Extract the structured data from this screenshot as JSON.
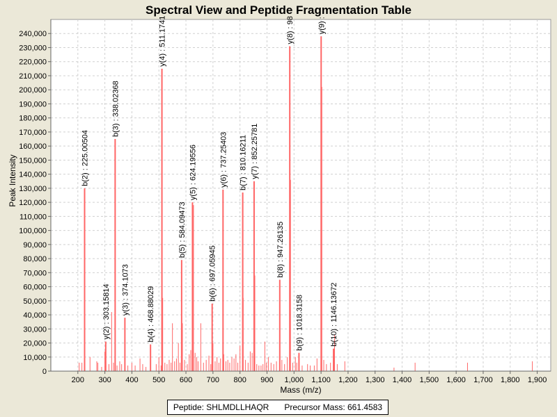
{
  "chart_data": {
    "type": "bar",
    "title": "Spectral View and Peptide Fragmentation Table",
    "xlabel": "Mass (m/z)",
    "ylabel": "Peak Intensity",
    "xlim": [
      100,
      1950
    ],
    "ylim": [
      0,
      250000
    ],
    "grid": true,
    "x_ticks": [
      200,
      300,
      400,
      500,
      600,
      700,
      800,
      900,
      1000,
      1100,
      1200,
      1300,
      1400,
      1500,
      1600,
      1700,
      1800,
      1900
    ],
    "x_tick_labels": [
      "200",
      "300",
      "400",
      "500",
      "600",
      "700",
      "800",
      "900",
      "1,000",
      "1,100",
      "1,200",
      "1,300",
      "1,400",
      "1,500",
      "1,600",
      "1,700",
      "1,800",
      "1,900"
    ],
    "y_ticks": [
      0,
      10000,
      20000,
      30000,
      40000,
      50000,
      60000,
      70000,
      80000,
      90000,
      100000,
      110000,
      120000,
      130000,
      140000,
      150000,
      160000,
      170000,
      180000,
      190000,
      200000,
      210000,
      220000,
      230000,
      240000
    ],
    "y_tick_labels": [
      "0",
      "10,000",
      "20,000",
      "30,000",
      "40,000",
      "50,000",
      "60,000",
      "70,000",
      "80,000",
      "90,000",
      "100,000",
      "110,000",
      "120,000",
      "130,000",
      "140,000",
      "150,000",
      "160,000",
      "170,000",
      "180,000",
      "190,000",
      "200,000",
      "210,000",
      "220,000",
      "230,000",
      "240,000"
    ],
    "annotated_peaks": [
      {
        "mz": 225.00504,
        "intensity": 130000,
        "label": "b(2) : 225.00504"
      },
      {
        "mz": 303.15814,
        "intensity": 21000,
        "label": "y(2) : 303.15814"
      },
      {
        "mz": 338.02368,
        "intensity": 165000,
        "label": "b(3) : 338.02368"
      },
      {
        "mz": 374.1073,
        "intensity": 38000,
        "label": "y(3) : 374.1073"
      },
      {
        "mz": 468.88029,
        "intensity": 19000,
        "label": "b(4) : 468.88029"
      },
      {
        "mz": 511.1741,
        "intensity": 215000,
        "label": "y(4) : 511.1741"
      },
      {
        "mz": 584.09473,
        "intensity": 79000,
        "label": "b(5) : 584.09473"
      },
      {
        "mz": 624.19556,
        "intensity": 120000,
        "label": "y(5) : 624.19556"
      },
      {
        "mz": 697.05945,
        "intensity": 48000,
        "label": "b(6) : 697.05945"
      },
      {
        "mz": 737.25403,
        "intensity": 129000,
        "label": "y(6) : 737.25403"
      },
      {
        "mz": 810.16211,
        "intensity": 127000,
        "label": "b(7) : 810.16211"
      },
      {
        "mz": 852.25781,
        "intensity": 135000,
        "label": "y(7) : 852.25781"
      },
      {
        "mz": 947.26135,
        "intensity": 65000,
        "label": "b(8) : 947.26135"
      },
      {
        "mz": 984.3,
        "intensity": 231000,
        "label": "y(8) : 98"
      },
      {
        "mz": 1018.3158,
        "intensity": 13000,
        "label": "b(9) : 1018.3158"
      },
      {
        "mz": 1100.4,
        "intensity": 238000,
        "label": "y(9) :"
      },
      {
        "mz": 1146.13672,
        "intensity": 16000,
        "label": "b(10) : 1146.13672"
      }
    ],
    "other_peaks": [
      {
        "mz": 205,
        "intensity": 6000
      },
      {
        "mz": 215,
        "intensity": 6000
      },
      {
        "mz": 245,
        "intensity": 10000
      },
      {
        "mz": 270,
        "intensity": 7000
      },
      {
        "mz": 274,
        "intensity": 6000
      },
      {
        "mz": 288,
        "intensity": 3000
      },
      {
        "mz": 300,
        "intensity": 14000
      },
      {
        "mz": 315,
        "intensity": 5000
      },
      {
        "mz": 325,
        "intensity": 42000
      },
      {
        "mz": 332,
        "intensity": 6000
      },
      {
        "mz": 345,
        "intensity": 4000
      },
      {
        "mz": 355,
        "intensity": 7000
      },
      {
        "mz": 362,
        "intensity": 5000
      },
      {
        "mz": 385,
        "intensity": 4000
      },
      {
        "mz": 400,
        "intensity": 6000
      },
      {
        "mz": 412,
        "intensity": 4000
      },
      {
        "mz": 430,
        "intensity": 9000
      },
      {
        "mz": 440,
        "intensity": 5000
      },
      {
        "mz": 452,
        "intensity": 3000
      },
      {
        "mz": 490,
        "intensity": 5000
      },
      {
        "mz": 500,
        "intensity": 10000
      },
      {
        "mz": 508,
        "intensity": 4000
      },
      {
        "mz": 514,
        "intensity": 52000
      },
      {
        "mz": 522,
        "intensity": 6000
      },
      {
        "mz": 530,
        "intensity": 5000
      },
      {
        "mz": 538,
        "intensity": 8000
      },
      {
        "mz": 545,
        "intensity": 6000
      },
      {
        "mz": 550,
        "intensity": 34000
      },
      {
        "mz": 558,
        "intensity": 7000
      },
      {
        "mz": 565,
        "intensity": 9000
      },
      {
        "mz": 572,
        "intensity": 20000
      },
      {
        "mz": 578,
        "intensity": 6000
      },
      {
        "mz": 587,
        "intensity": 34000
      },
      {
        "mz": 595,
        "intensity": 8000
      },
      {
        "mz": 605,
        "intensity": 5000
      },
      {
        "mz": 612,
        "intensity": 12000
      },
      {
        "mz": 618,
        "intensity": 15000
      },
      {
        "mz": 628,
        "intensity": 118000
      },
      {
        "mz": 634,
        "intensity": 13000
      },
      {
        "mz": 640,
        "intensity": 10000
      },
      {
        "mz": 645,
        "intensity": 7000
      },
      {
        "mz": 655,
        "intensity": 34000
      },
      {
        "mz": 665,
        "intensity": 6000
      },
      {
        "mz": 675,
        "intensity": 8000
      },
      {
        "mz": 685,
        "intensity": 11000
      },
      {
        "mz": 692,
        "intensity": 5000
      },
      {
        "mz": 700,
        "intensity": 20000
      },
      {
        "mz": 708,
        "intensity": 7000
      },
      {
        "mz": 715,
        "intensity": 10000
      },
      {
        "mz": 722,
        "intensity": 6000
      },
      {
        "mz": 728,
        "intensity": 9000
      },
      {
        "mz": 740,
        "intensity": 12000
      },
      {
        "mz": 748,
        "intensity": 7000
      },
      {
        "mz": 755,
        "intensity": 8000
      },
      {
        "mz": 762,
        "intensity": 6000
      },
      {
        "mz": 770,
        "intensity": 10000
      },
      {
        "mz": 778,
        "intensity": 9000
      },
      {
        "mz": 785,
        "intensity": 12000
      },
      {
        "mz": 792,
        "intensity": 6000
      },
      {
        "mz": 800,
        "intensity": 18000
      },
      {
        "mz": 812,
        "intensity": 52000
      },
      {
        "mz": 820,
        "intensity": 8000
      },
      {
        "mz": 830,
        "intensity": 6000
      },
      {
        "mz": 838,
        "intensity": 14000
      },
      {
        "mz": 845,
        "intensity": 13000
      },
      {
        "mz": 855,
        "intensity": 68000
      },
      {
        "mz": 862,
        "intensity": 5000
      },
      {
        "mz": 870,
        "intensity": 4000
      },
      {
        "mz": 878,
        "intensity": 4000
      },
      {
        "mz": 885,
        "intensity": 5000
      },
      {
        "mz": 892,
        "intensity": 21000
      },
      {
        "mz": 898,
        "intensity": 6000
      },
      {
        "mz": 905,
        "intensity": 10000
      },
      {
        "mz": 915,
        "intensity": 6000
      },
      {
        "mz": 925,
        "intensity": 5000
      },
      {
        "mz": 935,
        "intensity": 7000
      },
      {
        "mz": 955,
        "intensity": 8000
      },
      {
        "mz": 965,
        "intensity": 5000
      },
      {
        "mz": 975,
        "intensity": 10000
      },
      {
        "mz": 987,
        "intensity": 136000
      },
      {
        "mz": 995,
        "intensity": 6000
      },
      {
        "mz": 1005,
        "intensity": 10000
      },
      {
        "mz": 1010,
        "intensity": 6000
      },
      {
        "mz": 1030,
        "intensity": 4000
      },
      {
        "mz": 1050,
        "intensity": 5000
      },
      {
        "mz": 1060,
        "intensity": 4000
      },
      {
        "mz": 1075,
        "intensity": 4000
      },
      {
        "mz": 1085,
        "intensity": 9000
      },
      {
        "mz": 1103,
        "intensity": 202000
      },
      {
        "mz": 1110,
        "intensity": 8000
      },
      {
        "mz": 1120,
        "intensity": 5000
      },
      {
        "mz": 1135,
        "intensity": 6000
      },
      {
        "mz": 1150,
        "intensity": 26000
      },
      {
        "mz": 1160,
        "intensity": 5000
      },
      {
        "mz": 1188,
        "intensity": 7000
      },
      {
        "mz": 1370,
        "intensity": 2500
      },
      {
        "mz": 1448,
        "intensity": 6000
      },
      {
        "mz": 1642,
        "intensity": 6000
      },
      {
        "mz": 1882,
        "intensity": 7000
      }
    ]
  },
  "legend": {
    "peptide": "Peptide: SHLMDLLHAQR",
    "precursor": "Precursor Mass: 661.4583"
  },
  "colors": {
    "peak": "#ff6666",
    "plot_bg": "#ffffff",
    "grid": "#d0d0d0",
    "page_bg": "#ebe8d8"
  }
}
